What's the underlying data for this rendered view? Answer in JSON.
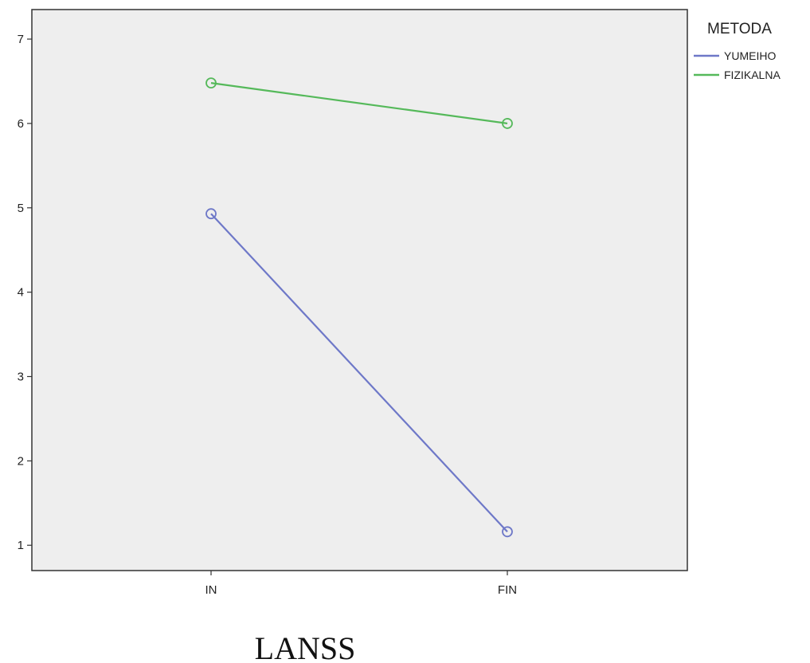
{
  "chart_data": {
    "type": "line",
    "title": "",
    "xlabel": "LANSS",
    "ylabel": "",
    "categories": [
      "IN",
      "FIN"
    ],
    "ylim": [
      0.7,
      7.35
    ],
    "yticks": [
      1,
      2,
      3,
      4,
      5,
      6,
      7
    ],
    "grid": false,
    "legend": {
      "title": "METODA",
      "placement": "top-right, outside plot"
    },
    "series": [
      {
        "name": "YUMEIHO",
        "color": "#6e78c8",
        "values": [
          4.93,
          1.16
        ]
      },
      {
        "name": "FIZIKALNA",
        "color": "#55b95a",
        "values": [
          6.48,
          6.0
        ]
      }
    ],
    "plot_background": "#eeeeee"
  }
}
